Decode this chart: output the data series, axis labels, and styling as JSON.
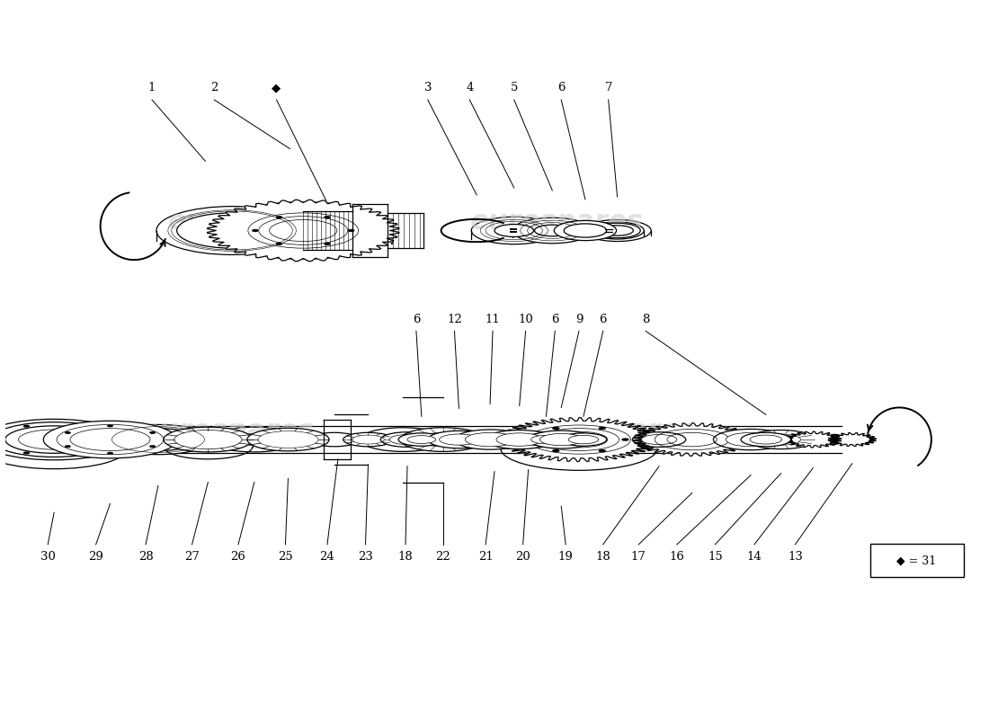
{
  "bg_color": "#ffffff",
  "line_color": "#000000",
  "watermark_color": "#cccccc",
  "watermark_text": "eurospares",
  "diamond_label": "◆ = 31"
}
